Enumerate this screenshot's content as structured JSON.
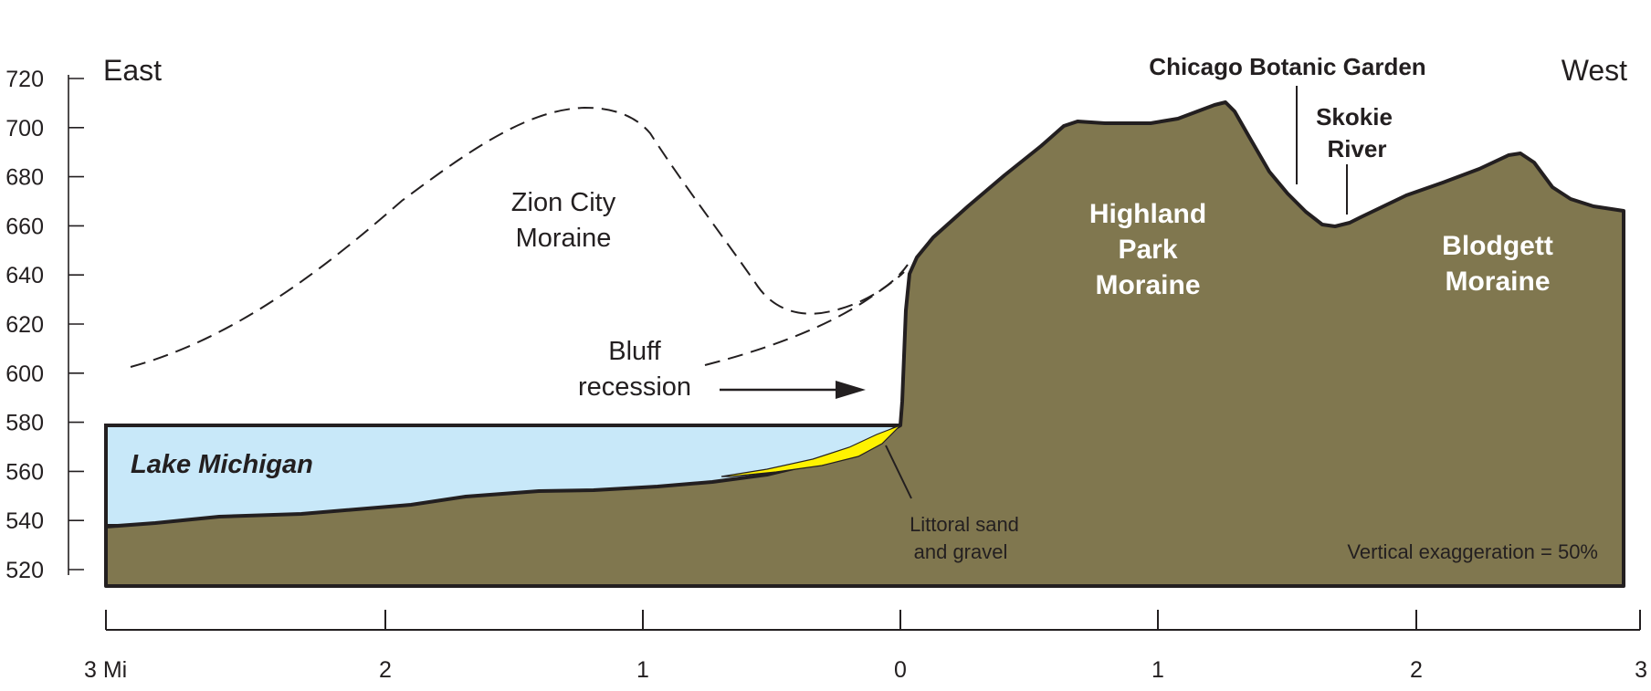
{
  "colors": {
    "land": "#80774f",
    "lake": "#c8e8f9",
    "sand": "#fff200",
    "ink": "#231f20"
  },
  "labels": {
    "east": "East",
    "west": "West",
    "zion_line1": "Zion City",
    "zion_line2": "Moraine",
    "bluff_line1": "Bluff",
    "bluff_line2": "recession",
    "lake": "Lake Michigan",
    "littoral_line1": "Littoral sand",
    "littoral_line2": "and gravel",
    "botanic": "Chicago Botanic Garden",
    "skokie_line1": "Skokie",
    "skokie_line2": "River",
    "highland_line1": "Highland",
    "highland_line2": "Park",
    "highland_line3": "Moraine",
    "blodgett_line1": "Blodgett",
    "blodgett_line2": "Moraine",
    "exaggeration": "Vertical exaggeration = 50%"
  },
  "y_axis": {
    "ticks": [
      "720",
      "700",
      "680",
      "660",
      "640",
      "620",
      "600",
      "580",
      "560",
      "540",
      "520"
    ]
  },
  "x_axis": {
    "ticks": [
      "3 Mi",
      "2",
      "1",
      "0",
      "1",
      "2",
      "3"
    ]
  }
}
